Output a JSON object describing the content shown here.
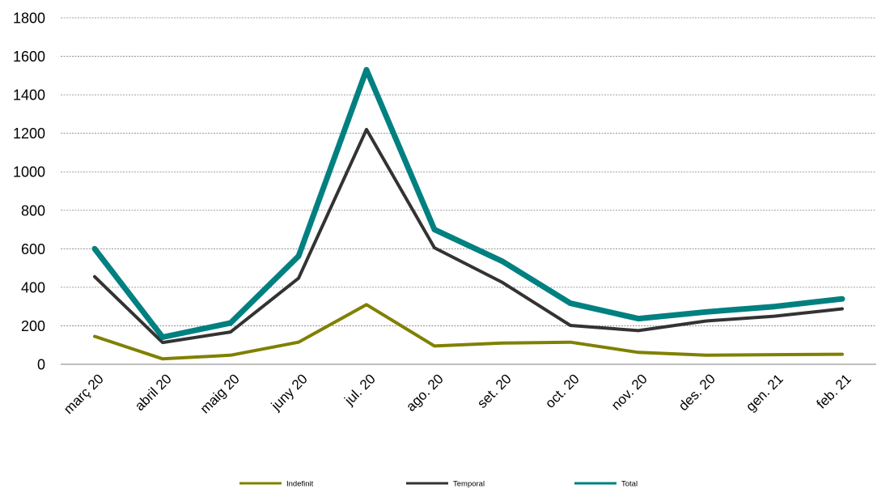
{
  "chart_data": {
    "type": "line",
    "title": "",
    "xlabel": "",
    "ylabel": "",
    "categories": [
      "març 20",
      "abril 20",
      "maig 20",
      "juny 20",
      "jul. 20",
      "ago. 20",
      "set. 20",
      "oct. 20",
      "nov. 20",
      "des. 20",
      "gen. 21",
      "feb. 21"
    ],
    "ylim": [
      0,
      1800
    ],
    "yticks": [
      0,
      200,
      400,
      600,
      800,
      1000,
      1200,
      1400,
      1600,
      1800
    ],
    "grid": true,
    "legend_position": "bottom",
    "series": [
      {
        "name": "Indefinit",
        "color": "#808000",
        "values": [
          145,
          28,
          47,
          115,
          310,
          95,
          110,
          115,
          62,
          47,
          50,
          52
        ]
      },
      {
        "name": "Temporal",
        "color": "#333333",
        "values": [
          455,
          113,
          168,
          447,
          1220,
          605,
          425,
          202,
          175,
          225,
          250,
          288
        ]
      },
      {
        "name": "Total",
        "color": "#008080",
        "values": [
          600,
          141,
          215,
          562,
          1530,
          700,
          535,
          317,
          237,
          272,
          300,
          340
        ]
      }
    ]
  }
}
